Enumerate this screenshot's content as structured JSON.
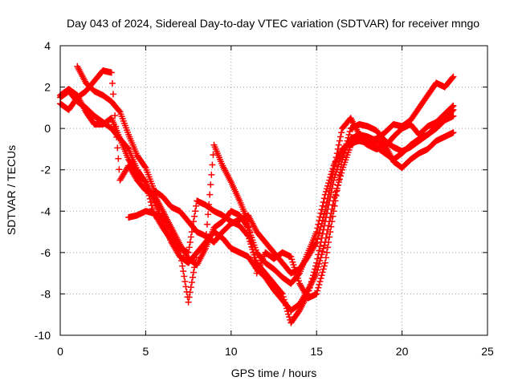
{
  "chart_data": {
    "type": "scatter",
    "title": "Day 043 of 2024, Sidereal Day-to-day VTEC variation (SDTVAR) for receiver mngo",
    "xlabel": "GPS time / hours",
    "ylabel": "SDTVAR / TECUs",
    "xlim": [
      0,
      25
    ],
    "ylim": [
      -10,
      4
    ],
    "xticks": [
      0,
      5,
      10,
      15,
      20,
      25
    ],
    "yticks": [
      -10,
      -8,
      -6,
      -4,
      -2,
      0,
      2,
      4
    ],
    "grid": true,
    "marker": "+",
    "color": "#ff0000",
    "series": [
      {
        "x": [
          0.0,
          0.5,
          1.0,
          1.5,
          2.0,
          2.5,
          3.0,
          3.5,
          4.0,
          4.5,
          5.0,
          5.5,
          6.0,
          6.5,
          7.0,
          7.5,
          8.0,
          8.5,
          9.0,
          9.5,
          10.0,
          10.5,
          11.0,
          11.5,
          12.0,
          12.5,
          13.0,
          13.5,
          14.0,
          14.5,
          15.0,
          15.5,
          16.0,
          16.5,
          17.0,
          17.5,
          18.0,
          18.5,
          19.0,
          19.5,
          20.0,
          20.5,
          21.0,
          21.5,
          22.0,
          22.5,
          23.0
        ],
        "y": [
          1.5,
          1.8,
          1.3,
          1.0,
          0.6,
          0.3,
          0.0,
          -0.5,
          -1.5,
          -2.2,
          -2.6,
          -3.5,
          -4.5,
          -5.5,
          -6.2,
          -6.5,
          -6.0,
          -5.5,
          -5.0,
          -5.3,
          -5.8,
          -6.0,
          -6.2,
          -6.8,
          -7.2,
          -7.8,
          -8.3,
          -8.8,
          -8.5,
          -7.8,
          -7.0,
          -5.5,
          -3.5,
          -2.0,
          -0.8,
          -0.5,
          -0.8,
          -1.0,
          -0.9,
          -0.4,
          0.0,
          0.2,
          -0.3,
          0.1,
          0.3,
          0.7,
          1.1
        ]
      },
      {
        "x": [
          0.0,
          0.5,
          1.0,
          1.5,
          2.0,
          2.5,
          3.0,
          3.5,
          4.0,
          4.5,
          5.0,
          5.5,
          6.0,
          6.5,
          7.0,
          7.5,
          8.0,
          8.5,
          9.0,
          9.5,
          10.0,
          10.5,
          11.0,
          11.5,
          12.0,
          12.5,
          13.0,
          13.5,
          14.0,
          14.5,
          15.0,
          15.5,
          16.0,
          16.5,
          17.0,
          17.5,
          18.0,
          18.5,
          19.0,
          19.5,
          20.0,
          20.5,
          21.0,
          21.5,
          22.0,
          22.5,
          23.0
        ],
        "y": [
          1.2,
          0.9,
          1.5,
          1.8,
          2.3,
          2.8,
          2.7,
          -2.5,
          -1.8,
          -2.5,
          -3.0,
          -3.2,
          -4.0,
          -4.8,
          -5.6,
          -6.3,
          -6.6,
          -5.8,
          -4.8,
          -4.5,
          -4.0,
          -4.2,
          -4.8,
          -6.0,
          -6.5,
          -6.8,
          -7.2,
          -7.5,
          -7.0,
          -6.0,
          -5.0,
          -3.2,
          -1.8,
          -1.0,
          -0.7,
          -0.6,
          -0.7,
          -0.9,
          -1.2,
          -1.5,
          -1.2,
          -0.8,
          -0.5,
          -0.3,
          0.1,
          0.5,
          0.9
        ]
      },
      {
        "x": [
          0.0,
          0.5,
          1.0,
          1.5,
          2.0,
          2.5,
          3.0,
          3.5,
          4.0,
          4.5,
          5.0,
          5.5,
          6.0,
          6.5,
          7.0,
          7.5,
          8.0,
          8.5,
          9.0,
          9.5,
          10.0,
          10.5,
          11.0,
          11.5,
          12.0,
          12.5,
          13.0,
          13.5,
          14.0,
          14.5,
          15.0,
          15.5,
          16.0,
          16.5,
          17.0,
          17.5,
          18.0,
          18.5,
          19.0,
          19.5,
          20.0,
          20.5,
          21.0,
          21.5,
          22.0,
          22.5,
          23.0
        ],
        "y": [
          1.6,
          1.9,
          1.6,
          0.8,
          0.2,
          0.2,
          0.5,
          -0.5,
          -1.0,
          -2.0,
          -2.6,
          -4.2,
          -4.2,
          -5.0,
          -5.8,
          -6.0,
          -3.5,
          -3.7,
          -4.0,
          -4.2,
          -4.5,
          -4.7,
          -5.2,
          -6.5,
          -7.0,
          -7.5,
          -8.0,
          -9.4,
          -8.8,
          -8.0,
          -6.5,
          -4.5,
          -2.5,
          -1.2,
          -0.5,
          -0.3,
          -0.4,
          -0.6,
          -0.8,
          -1.6,
          -1.9,
          -1.5,
          -1.2,
          -1.0,
          -0.6,
          -0.4,
          -0.2
        ]
      },
      {
        "x": [
          1.0,
          1.5,
          2.0,
          2.5,
          3.0,
          3.5,
          4.0,
          4.5,
          5.0,
          5.5,
          6.0,
          6.5,
          7.0,
          7.5,
          8.0,
          8.5,
          9.0,
          9.5,
          10.0,
          10.5,
          11.0,
          11.5,
          12.0,
          12.5,
          13.0,
          13.5,
          14.0,
          14.5,
          15.0,
          15.5,
          16.0,
          16.5,
          17.0,
          17.5,
          18.0,
          18.5,
          19.0,
          19.5,
          20.0,
          20.5,
          21.0,
          21.5,
          22.0,
          22.5,
          23.0
        ],
        "y": [
          3.0,
          2.2,
          1.8,
          1.6,
          1.3,
          0.8,
          -0.3,
          -1.3,
          -1.9,
          -3.0,
          -3.3,
          -3.8,
          -4.0,
          -4.5,
          -5.0,
          -5.2,
          -5.5,
          -5.0,
          -4.6,
          -4.4,
          -4.2,
          -5.0,
          -5.5,
          -6.0,
          -6.5,
          -7.0,
          -6.8,
          -6.2,
          -5.5,
          -4.0,
          -2.0,
          0.0,
          0.5,
          -0.3,
          -0.6,
          -0.5,
          -0.2,
          0.2,
          0.1,
          0.4,
          1.0,
          1.6,
          2.2,
          2.0,
          2.5
        ]
      },
      {
        "x": [
          4.0,
          4.5,
          5.0,
          5.5,
          6.0,
          6.5,
          7.0,
          7.5,
          8.0,
          8.5,
          9.0,
          9.5,
          10.0,
          10.5,
          11.0,
          11.5,
          12.0,
          12.5,
          13.0,
          13.5,
          14.0,
          14.5,
          15.0,
          15.5,
          16.0,
          16.5,
          17.0,
          17.5,
          18.0,
          18.5,
          19.0,
          19.5,
          20.0,
          20.5,
          21.0,
          21.5,
          22.0,
          22.5,
          23.0
        ],
        "y": [
          -4.3,
          -4.2,
          -4.0,
          -4.1,
          -4.8,
          -5.4,
          -5.9,
          -8.4,
          -6.0,
          -5.6,
          -0.8,
          -1.8,
          -2.6,
          -3.5,
          -4.5,
          -7.0,
          -6.0,
          -6.3,
          -6.0,
          -6.2,
          -7.5,
          -8.2,
          -8.0,
          -6.5,
          -4.0,
          -1.5,
          0.0,
          0.2,
          0.1,
          -0.1,
          -0.6,
          -0.9,
          -1.1,
          -0.9,
          -0.6,
          -0.3,
          0.0,
          0.4,
          0.6
        ]
      }
    ]
  }
}
